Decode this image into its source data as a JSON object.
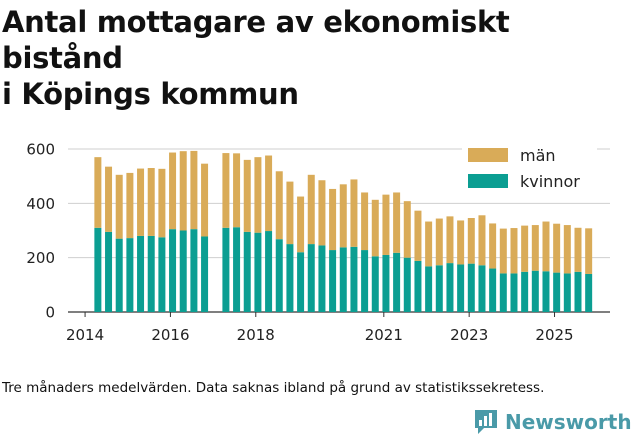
{
  "title_line1": "Antal mottagare av ekonomiskt bistånd",
  "title_line2": "i Köpings kommun",
  "caption": "Tre månaders medelvärden. Data saknas ibland på grund av statistikssekretess.",
  "brand": "Newsworthy",
  "colors": {
    "man": "#d9ab58",
    "kvinnor": "#0b9e92",
    "grid": "#cfcfcf",
    "text": "#222222"
  },
  "chart_data": {
    "type": "bar",
    "stacked": true,
    "title": "Antal mottagare av ekonomiskt bistånd i Köpings kommun",
    "xlabel": "",
    "ylabel": "",
    "ylim": [
      0,
      600
    ],
    "yticks": [
      0,
      200,
      400,
      600
    ],
    "xlim": [
      2013.6,
      2026.3
    ],
    "xticks": [
      2014,
      2016,
      2018,
      2021,
      2023,
      2025
    ],
    "legend": {
      "position": "top-right",
      "entries": [
        "män",
        "kvinnor"
      ]
    },
    "x": [
      2014.3,
      2014.55,
      2014.8,
      2015.05,
      2015.3,
      2015.55,
      2015.8,
      2016.05,
      2016.3,
      2016.55,
      2016.8,
      2017.3,
      2017.55,
      2017.8,
      2018.05,
      2018.3,
      2018.55,
      2018.8,
      2019.05,
      2019.3,
      2019.55,
      2019.8,
      2020.05,
      2020.3,
      2020.55,
      2020.8,
      2021.05,
      2021.3,
      2021.55,
      2021.8,
      2022.05,
      2022.3,
      2022.55,
      2022.8,
      2023.05,
      2023.3,
      2023.55,
      2023.8,
      2024.05,
      2024.3,
      2024.55,
      2024.8,
      2025.05,
      2025.3,
      2025.55,
      2025.8
    ],
    "series": [
      {
        "name": "kvinnor",
        "values": [
          310,
          295,
          270,
          272,
          280,
          280,
          275,
          305,
          300,
          305,
          278,
          310,
          312,
          295,
          292,
          298,
          268,
          250,
          220,
          250,
          245,
          228,
          238,
          240,
          228,
          205,
          210,
          218,
          200,
          188,
          168,
          172,
          180,
          175,
          178,
          172,
          160,
          142,
          142,
          148,
          152,
          150,
          145,
          142,
          148,
          140
        ]
      },
      {
        "name": "män",
        "values": [
          260,
          240,
          235,
          240,
          248,
          250,
          252,
          282,
          292,
          288,
          268,
          275,
          272,
          265,
          278,
          278,
          250,
          230,
          205,
          255,
          240,
          225,
          232,
          248,
          212,
          208,
          222,
          222,
          208,
          185,
          165,
          172,
          172,
          162,
          168,
          184,
          166,
          165,
          167,
          170,
          168,
          183,
          180,
          178,
          162,
          168
        ]
      }
    ]
  }
}
